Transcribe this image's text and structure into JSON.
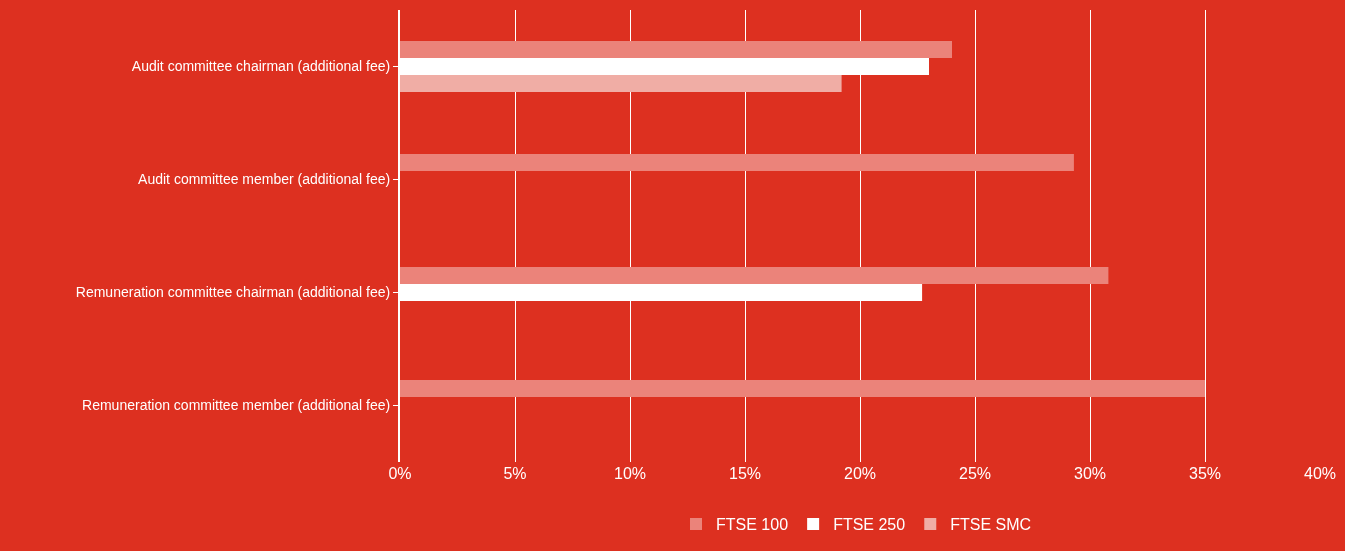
{
  "chart_data": {
    "type": "bar",
    "orientation": "horizontal",
    "categories": [
      "Audit committee chairman (additional fee)",
      "Audit committee member (additional fee)",
      "Remuneration committee chairman (additional fee)",
      "Remuneration committee member (additional fee)"
    ],
    "series": [
      {
        "name": "FTSE 100",
        "color": "#eb837a",
        "values": [
          24,
          29.3,
          30.8,
          35
        ]
      },
      {
        "name": "FTSE 250",
        "color": "#ffffff",
        "values": [
          23,
          null,
          22.7,
          null
        ]
      },
      {
        "name": "FTSE SMC",
        "color": "#f0ada5",
        "values": [
          19.2,
          null,
          null,
          null
        ]
      }
    ],
    "xlim": [
      0,
      40
    ],
    "xticks": [
      {
        "value": 0,
        "label": "0%"
      },
      {
        "value": 5,
        "label": "5%"
      },
      {
        "value": 10,
        "label": "10%"
      },
      {
        "value": 15,
        "label": "15%"
      },
      {
        "value": 20,
        "label": "20%"
      },
      {
        "value": 25,
        "label": "25%"
      },
      {
        "value": 30,
        "label": "30%"
      },
      {
        "value": 35,
        "label": "35%"
      },
      {
        "value": 40,
        "label": "40%"
      }
    ],
    "grid": "x",
    "legend": "bottom"
  }
}
